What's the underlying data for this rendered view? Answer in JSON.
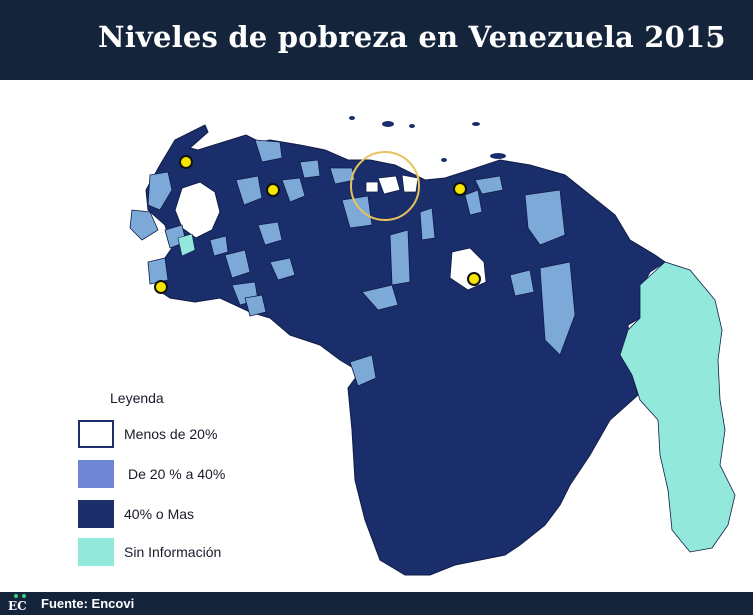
{
  "header": {
    "title": "Niveles de pobreza en Venezuela 2015"
  },
  "legend": {
    "title": "Leyenda",
    "items": [
      {
        "label": "Menos de 20%",
        "color": "#ffffff",
        "border": "#1d2f6b"
      },
      {
        "label": "De 20 % a 40%",
        "color": "#6f86d6",
        "border": "#6f86d6"
      },
      {
        "label": "40% o Mas",
        "color": "#1d2f6b",
        "border": "#1d2f6b"
      },
      {
        "label": "Sin Información",
        "color": "#92e8da",
        "border": "#92e8da"
      }
    ]
  },
  "map_colors": {
    "high": "#1b2e6c",
    "mid": "#7da9d8",
    "low": "#ffffff",
    "none": "#92e8da",
    "marker": "#f5e600",
    "highlight_ring": "#e8c25a"
  },
  "footer": {
    "logo": "EC",
    "source": "Fuente: Encovi"
  }
}
